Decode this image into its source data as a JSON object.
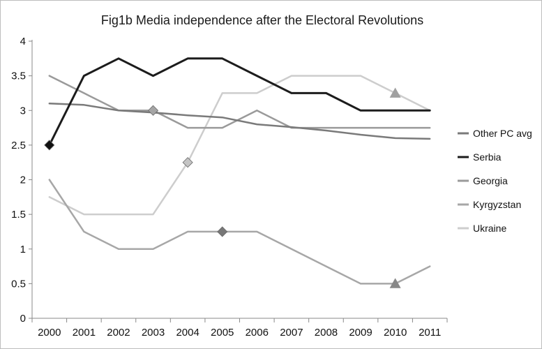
{
  "chart_data": {
    "type": "line",
    "title": "Fig1b Media independence after the Electoral Revolutions",
    "xlabel": "",
    "ylabel": "",
    "categories": [
      "2000",
      "2001",
      "2002",
      "2003",
      "2004",
      "2005",
      "2006",
      "2007",
      "2008",
      "2009",
      "2010",
      "2011"
    ],
    "ylim": [
      0,
      4
    ],
    "yticks": [
      "0",
      "0.5",
      "1",
      "1.5",
      "2",
      "2.5",
      "3",
      "3.5",
      "4"
    ],
    "grid": false,
    "legend_position": "right",
    "series": [
      {
        "name": "Other PC avg",
        "color": "#7a7a7a",
        "width": 2.5,
        "values": [
          3.1,
          3.08,
          3.0,
          2.97,
          2.93,
          2.9,
          2.8,
          2.76,
          2.71,
          2.65,
          2.6,
          2.59
        ]
      },
      {
        "name": "Serbia",
        "color": "#1c1c1c",
        "width": 3,
        "values": [
          2.5,
          3.5,
          3.75,
          3.5,
          3.75,
          3.75,
          3.5,
          3.25,
          3.25,
          3.0,
          3.0,
          3.0
        ],
        "markers": [
          {
            "index": 0,
            "shape": "diamond",
            "color": "#111111"
          }
        ]
      },
      {
        "name": "Georgia",
        "color": "#9a9a9a",
        "width": 2.5,
        "values": [
          3.5,
          3.25,
          3.0,
          3.0,
          2.75,
          2.75,
          3.0,
          2.75,
          2.75,
          2.75,
          2.75,
          2.75
        ],
        "markers": [
          {
            "index": 3,
            "shape": "diamond",
            "color": "#a5a5a5"
          }
        ]
      },
      {
        "name": "Kyrgyzstan",
        "color": "#a7a7a7",
        "width": 2.5,
        "values": [
          2.0,
          1.25,
          1.0,
          1.0,
          1.25,
          1.25,
          1.25,
          1.0,
          0.75,
          0.5,
          0.5,
          0.75
        ],
        "markers": [
          {
            "index": 5,
            "shape": "diamond",
            "color": "#777777"
          },
          {
            "index": 10,
            "shape": "triangle",
            "color": "#888888"
          }
        ]
      },
      {
        "name": "Ukraine",
        "color": "#cdcdcd",
        "width": 2.5,
        "values": [
          1.75,
          1.5,
          1.5,
          1.5,
          2.25,
          3.25,
          3.25,
          3.5,
          3.5,
          3.5,
          3.25,
          3.0
        ],
        "markers": [
          {
            "index": 4,
            "shape": "diamond",
            "color": "#c4c4c4"
          },
          {
            "index": 10,
            "shape": "triangle",
            "color": "#a0a0a0"
          }
        ]
      }
    ]
  }
}
